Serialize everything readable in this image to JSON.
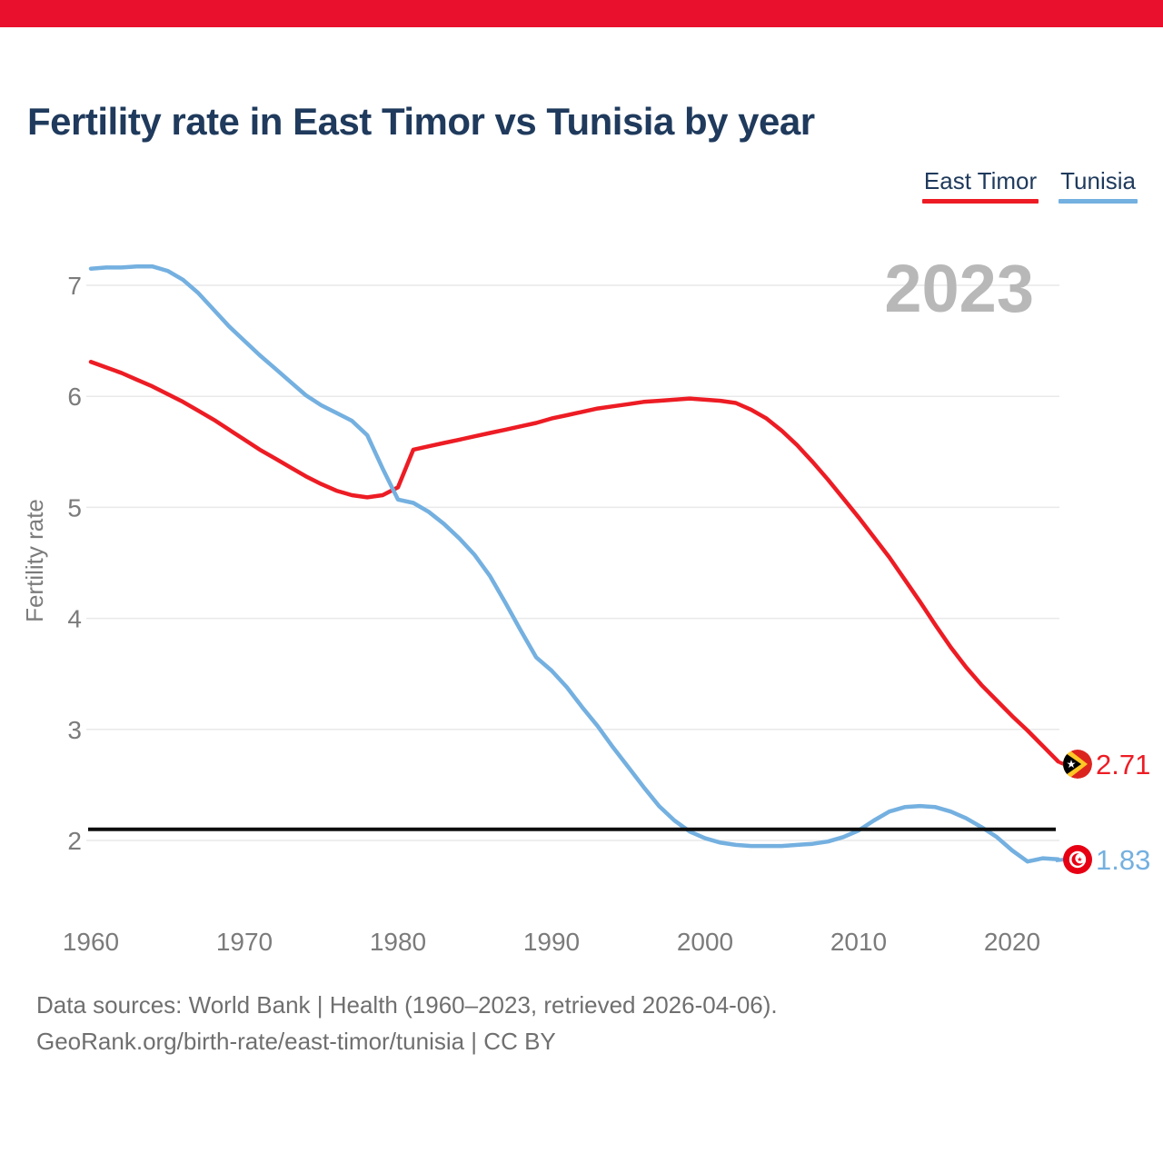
{
  "page": {
    "background": "#ffffff",
    "top_bar_color": "#e8102d"
  },
  "header": {
    "title": "Fertility rate in East Timor vs Tunisia by year"
  },
  "legend": {
    "items": [
      {
        "label": "East Timor",
        "color": "#ed1c24"
      },
      {
        "label": "Tunisia",
        "color": "#74b0e0"
      }
    ]
  },
  "watermark": {
    "year": "2023"
  },
  "chart_data": {
    "type": "line",
    "title": "Fertility rate in East Timor vs Tunisia by year",
    "xlabel": "",
    "ylabel": "Fertility rate",
    "xticks": [
      1960,
      1970,
      1980,
      1990,
      2000,
      2010,
      2020
    ],
    "yticks": [
      2,
      3,
      4,
      5,
      6,
      7
    ],
    "ylim": [
      1.3,
      7.3
    ],
    "xlim": [
      1960,
      2023
    ],
    "grid": "horizontal",
    "legend_position": "top-right",
    "x": [
      1960,
      1961,
      1962,
      1963,
      1964,
      1965,
      1966,
      1967,
      1968,
      1969,
      1970,
      1971,
      1972,
      1973,
      1974,
      1975,
      1976,
      1977,
      1978,
      1979,
      1980,
      1981,
      1982,
      1983,
      1984,
      1985,
      1986,
      1987,
      1988,
      1989,
      1990,
      1991,
      1992,
      1993,
      1994,
      1995,
      1996,
      1997,
      1998,
      1999,
      2000,
      2001,
      2002,
      2003,
      2004,
      2005,
      2006,
      2007,
      2008,
      2009,
      2010,
      2011,
      2012,
      2013,
      2014,
      2015,
      2016,
      2017,
      2018,
      2019,
      2020,
      2021,
      2022,
      2023
    ],
    "series": [
      {
        "name": "East Timor",
        "color": "#ed1c24",
        "end_label": "2.71",
        "values": [
          6.31,
          6.26,
          6.21,
          6.15,
          6.09,
          6.02,
          5.95,
          5.87,
          5.79,
          5.7,
          5.61,
          5.52,
          5.44,
          5.36,
          5.28,
          5.21,
          5.15,
          5.11,
          5.09,
          5.11,
          5.18,
          5.52,
          5.55,
          5.58,
          5.61,
          5.64,
          5.67,
          5.7,
          5.73,
          5.76,
          5.8,
          5.83,
          5.86,
          5.89,
          5.91,
          5.93,
          5.95,
          5.96,
          5.97,
          5.98,
          5.97,
          5.96,
          5.94,
          5.88,
          5.8,
          5.69,
          5.56,
          5.41,
          5.25,
          5.08,
          4.91,
          4.73,
          4.55,
          4.35,
          4.15,
          3.94,
          3.74,
          3.56,
          3.4,
          3.26,
          3.12,
          2.99,
          2.85,
          2.71
        ]
      },
      {
        "name": "Tunisia",
        "color": "#74b0e0",
        "end_label": "1.83",
        "values": [
          7.15,
          7.16,
          7.16,
          7.17,
          7.17,
          7.13,
          7.05,
          6.93,
          6.78,
          6.63,
          6.5,
          6.37,
          6.25,
          6.13,
          6.01,
          5.92,
          5.85,
          5.78,
          5.65,
          5.35,
          5.07,
          5.04,
          4.96,
          4.85,
          4.72,
          4.57,
          4.38,
          4.14,
          3.89,
          3.65,
          3.53,
          3.38,
          3.2,
          3.03,
          2.84,
          2.66,
          2.48,
          2.31,
          2.18,
          2.08,
          2.02,
          1.98,
          1.96,
          1.95,
          1.95,
          1.95,
          1.96,
          1.97,
          1.99,
          2.03,
          2.09,
          2.18,
          2.26,
          2.3,
          2.31,
          2.3,
          2.26,
          2.2,
          2.12,
          2.03,
          1.91,
          1.81,
          1.84,
          1.83
        ]
      }
    ],
    "reference_line": {
      "value": 2.1,
      "color": "#0d0d0d"
    },
    "colors": {
      "grid": "#e9e9e9",
      "axis_text": "#7b7b7b",
      "watermark": "#b8b8b8",
      "title_text": "#1f3a5c"
    }
  },
  "footer": {
    "line1": "Data sources: World Bank | Health (1960–2023, retrieved 2026-04-06).",
    "line2": "GeoRank.org/birth-rate/east-timor/tunisia | CC BY"
  }
}
